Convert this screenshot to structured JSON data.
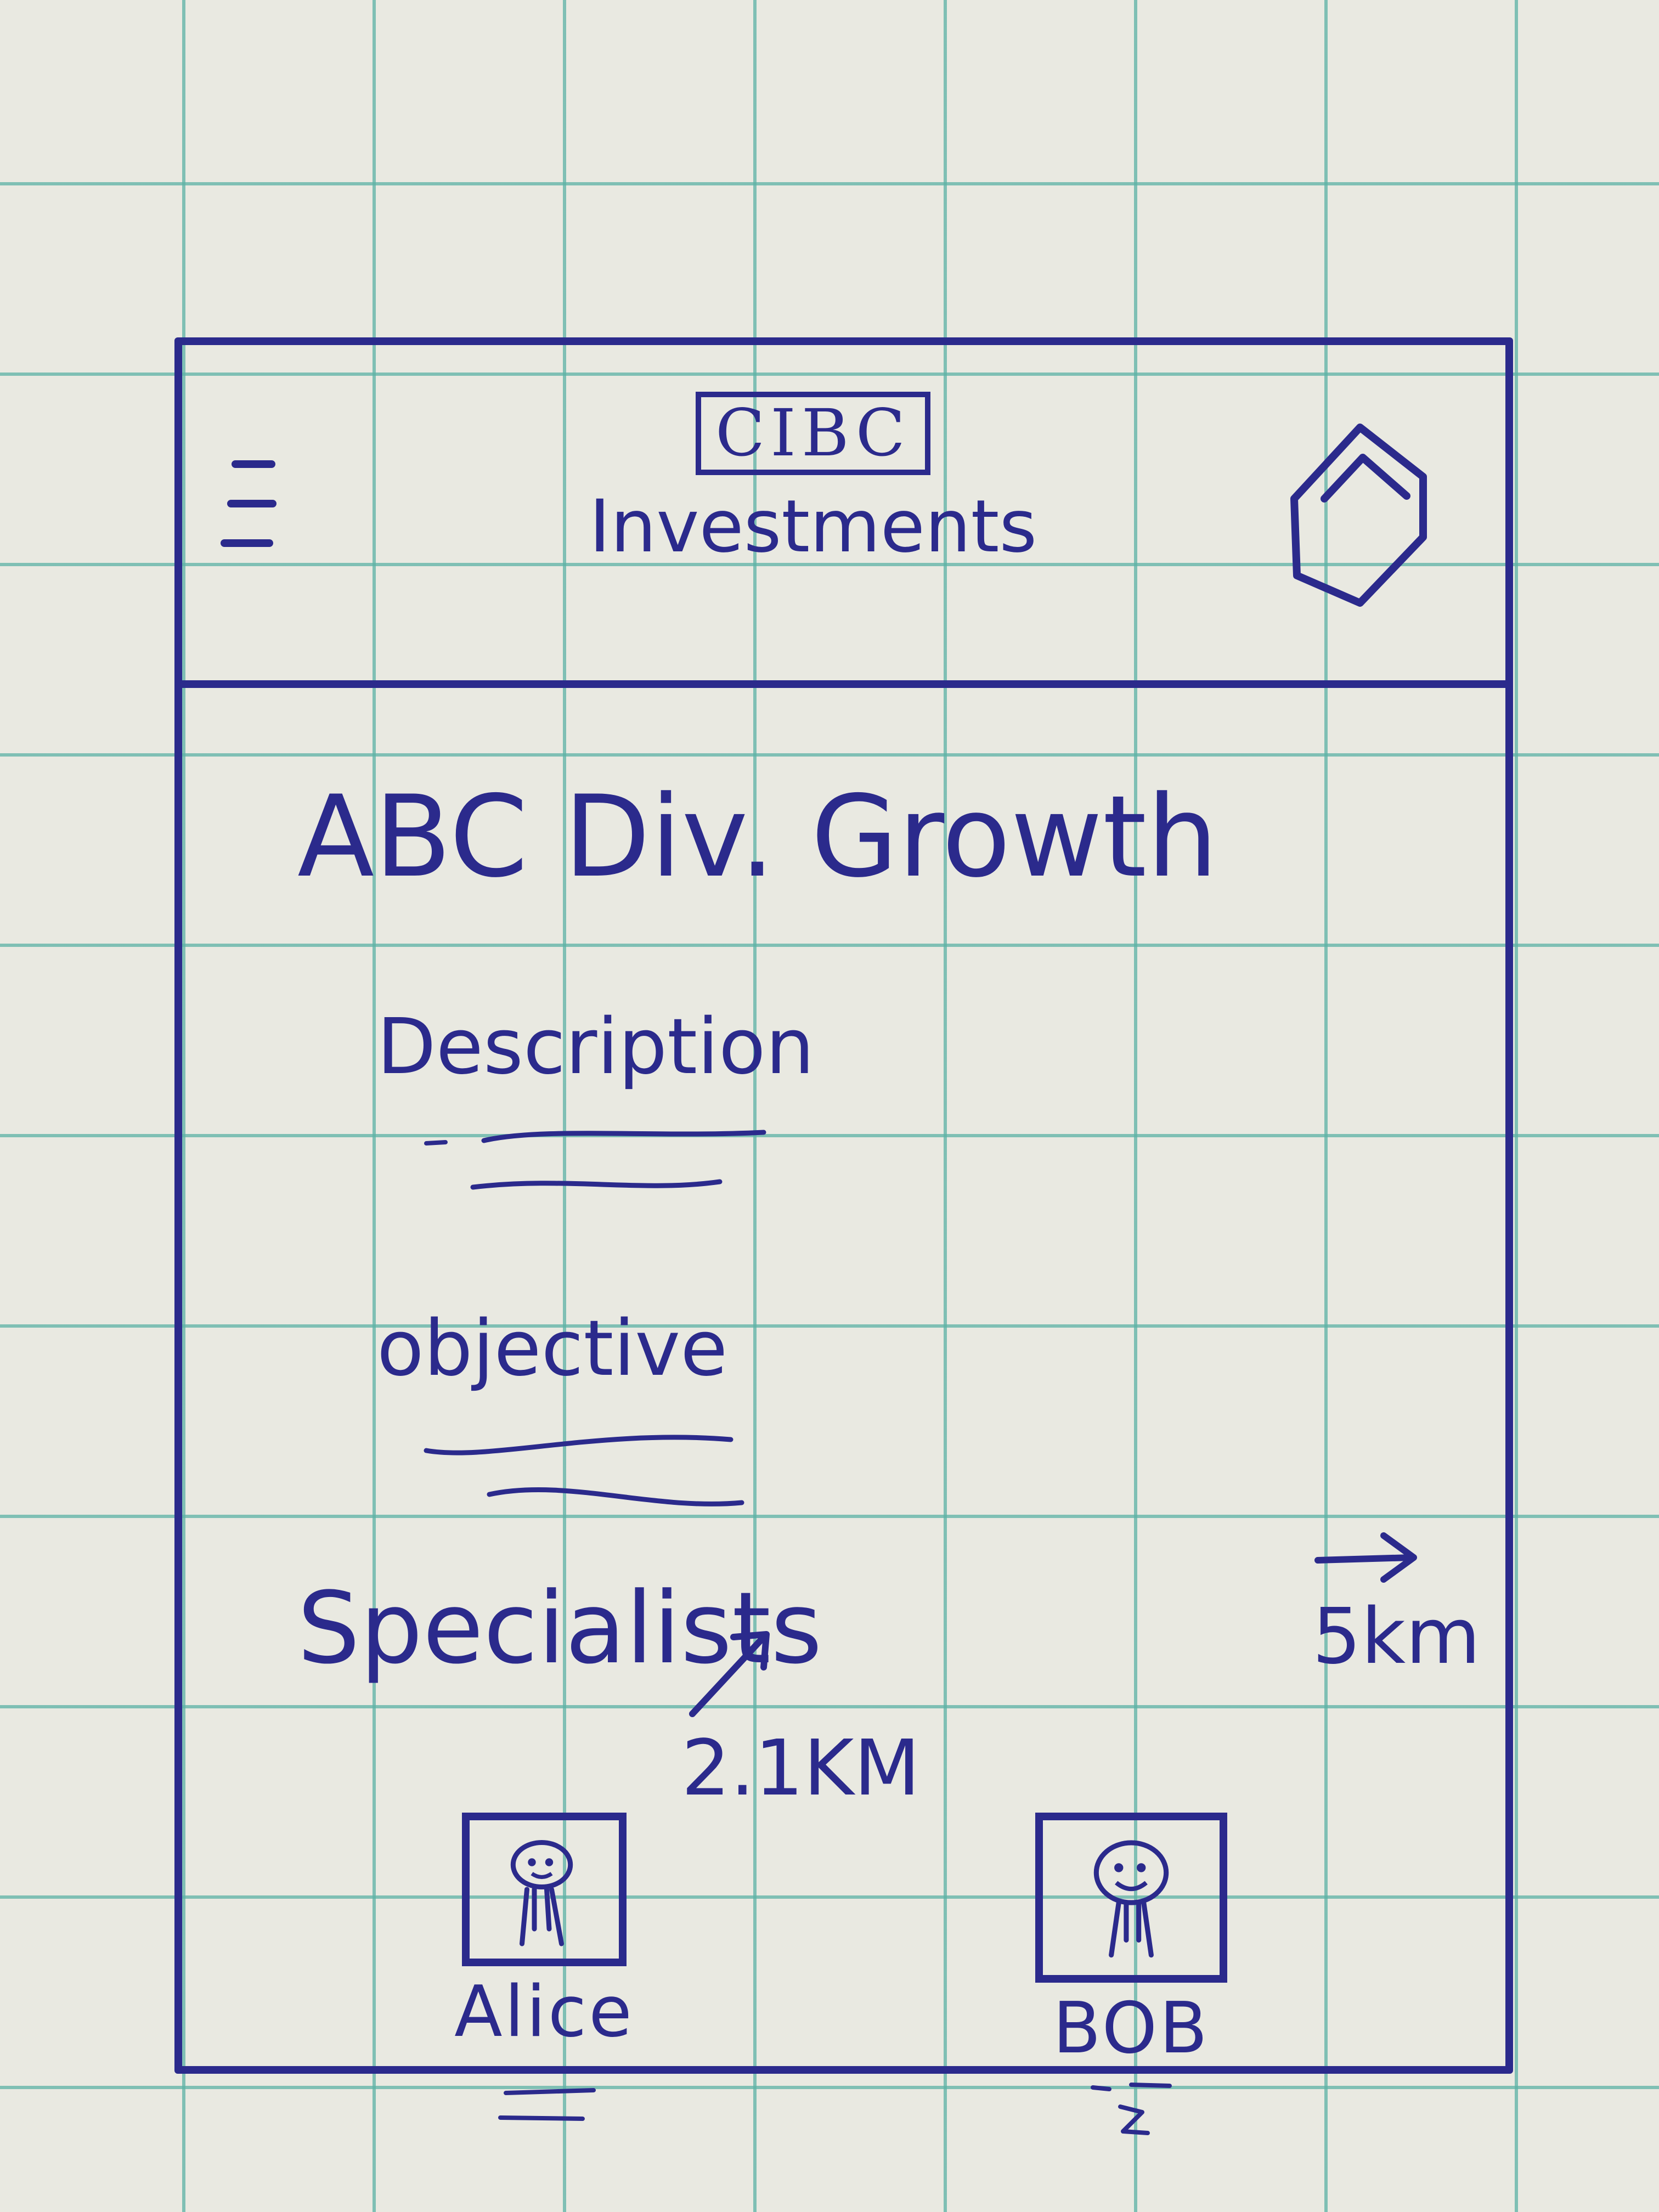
{
  "header": {
    "brand_logo": "CIBC",
    "subtitle": "Investments"
  },
  "fund": {
    "title": "ABC Div. Growth",
    "description_label": "Description",
    "objective_label": "objective"
  },
  "specialists": {
    "heading": "Specialists",
    "people": [
      {
        "name": "Alice",
        "distance": "2.1KM",
        "direction": "northeast"
      },
      {
        "name": "BOB",
        "distance": "5km",
        "direction": "east"
      }
    ]
  },
  "icons": {
    "menu": "hamburger-icon",
    "profile": "hexagon-user-icon",
    "direction_alice": "arrow-up-right-icon",
    "direction_bob": "arrow-right-icon"
  },
  "colors": {
    "ink": "#2b2a8c",
    "paper": "#e9e9e1",
    "grid": "#5cb2a5"
  }
}
